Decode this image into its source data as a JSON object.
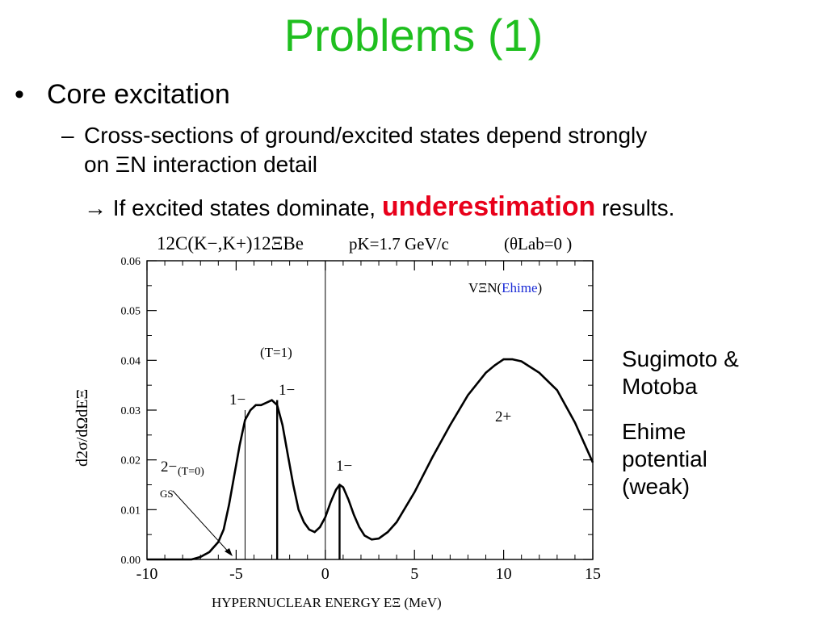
{
  "slide": {
    "title": "Problems (1)",
    "bullet1": "Core excitation",
    "bullet2_line1": "Cross-sections of ground/excited states depend strongly",
    "bullet2_line2": "on ΞN interaction detail",
    "bullet3_arrow": "→",
    "bullet3_pre": "If excited states dominate,",
    "bullet3_emph": "underestimation",
    "bullet3_post": "results.",
    "side_note1_line1": "Sugimoto &",
    "side_note1_line2": "Motoba",
    "side_note2_line1": "Ehime",
    "side_note2_line2": "potential",
    "side_note2_line3": "(weak)"
  },
  "colors": {
    "title": "#1fbf1f",
    "emphasis": "#e8001a",
    "ehime_label": "#1a2bd6"
  },
  "chart_data": {
    "type": "line",
    "title_parts": {
      "reaction": "12C(K−,K+)12ΞBe",
      "momentum": "pK=1.7 GeV/c",
      "angle": "(θLab=0 )"
    },
    "xlabel": "HYPERNUCLEAR ENERGY EΞ (MeV)",
    "ylabel": "d2σ/dΩdEΞ",
    "xlim": [
      -10,
      15
    ],
    "ylim": [
      0,
      0.06
    ],
    "x_ticks": [
      "-10",
      "-5",
      "0",
      "5",
      "10",
      "15"
    ],
    "y_ticks": [
      "0.00",
      "0.01",
      "0.02",
      "0.03",
      "0.04",
      "0.05",
      "0.06"
    ],
    "legend": "VΞN(Ehime)",
    "series": [
      {
        "x": [
          -10,
          -7.5,
          -7,
          -6.5,
          -6,
          -5.7,
          -5.4,
          -5.1,
          -4.8,
          -4.5,
          -4.2,
          -3.9,
          -3.6,
          -3.3,
          -3.0,
          -2.7,
          -2.4,
          -2.1,
          -1.8,
          -1.5,
          -1.2,
          -0.9,
          -0.6,
          -0.3,
          0,
          0.3,
          0.6,
          0.8,
          1.0,
          1.3,
          1.6,
          1.9,
          2.2,
          2.6,
          3.0,
          3.5,
          4,
          5,
          6,
          7,
          8,
          9,
          9.5,
          10,
          10.5,
          11,
          12,
          13,
          14,
          15
        ],
        "y": [
          0,
          0.0,
          0.0005,
          0.0015,
          0.0035,
          0.006,
          0.011,
          0.017,
          0.023,
          0.028,
          0.03,
          0.031,
          0.031,
          0.0315,
          0.032,
          0.031,
          0.027,
          0.021,
          0.015,
          0.01,
          0.0075,
          0.006,
          0.0055,
          0.0065,
          0.0085,
          0.0115,
          0.014,
          0.015,
          0.0145,
          0.012,
          0.009,
          0.0065,
          0.0048,
          0.004,
          0.0042,
          0.0055,
          0.0075,
          0.0135,
          0.0205,
          0.027,
          0.033,
          0.0375,
          0.039,
          0.0402,
          0.0402,
          0.0398,
          0.0375,
          0.034,
          0.0275,
          0.0195
        ]
      }
    ],
    "state_lines": [
      {
        "x": -4.5,
        "y": 0.03
      },
      {
        "x": -2.7,
        "y": 0.032
      },
      {
        "x": 0.8,
        "y": 0.015
      }
    ],
    "annotations": {
      "t1": "(T=1)",
      "t0": "(T=0)",
      "gs": "GS",
      "peak_left": "1−",
      "peak_mid": "1−",
      "peak_small": "1−",
      "peak_big": "2+",
      "ground": "2−"
    }
  }
}
